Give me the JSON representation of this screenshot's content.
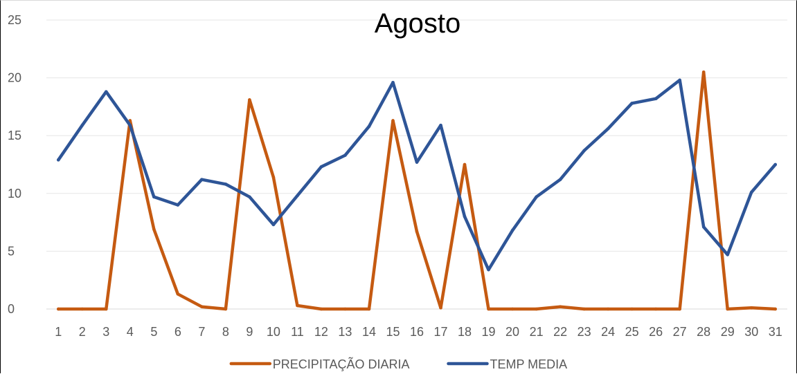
{
  "chart_data": {
    "type": "line",
    "title": "Agosto",
    "xlabel": "",
    "ylabel": "",
    "categories": [
      "1",
      "2",
      "3",
      "4",
      "5",
      "6",
      "7",
      "8",
      "9",
      "10",
      "11",
      "12",
      "13",
      "14",
      "15",
      "16",
      "17",
      "18",
      "19",
      "20",
      "21",
      "22",
      "23",
      "24",
      "25",
      "26",
      "27",
      "28",
      "29",
      "30",
      "31"
    ],
    "ylim": [
      0,
      25
    ],
    "yticks": [
      "0",
      "5",
      "10",
      "15",
      "20",
      "25"
    ],
    "grid": "horizontal",
    "legend_position": "bottom",
    "series": [
      {
        "name": "PRECIPITAÇÃO DIARIA",
        "color": "#c55a11",
        "values": [
          0,
          0,
          0,
          16.3,
          6.9,
          1.3,
          0.2,
          0,
          18.1,
          11.4,
          0.3,
          0,
          0,
          0,
          16.3,
          6.7,
          0.1,
          12.5,
          0,
          0,
          0,
          0.2,
          0,
          0,
          0,
          0,
          0,
          20.5,
          0,
          0.1,
          0
        ]
      },
      {
        "name": "TEMP MEDIA",
        "color": "#2e5597",
        "values": [
          12.9,
          15.9,
          18.8,
          15.9,
          9.7,
          9.0,
          11.2,
          10.8,
          9.7,
          7.3,
          9.8,
          12.3,
          13.3,
          15.8,
          19.6,
          12.7,
          15.9,
          8.0,
          3.4,
          6.8,
          9.7,
          11.2,
          13.7,
          15.6,
          17.8,
          18.2,
          19.8,
          7.1,
          4.7,
          10.1,
          12.5
        ]
      }
    ]
  }
}
